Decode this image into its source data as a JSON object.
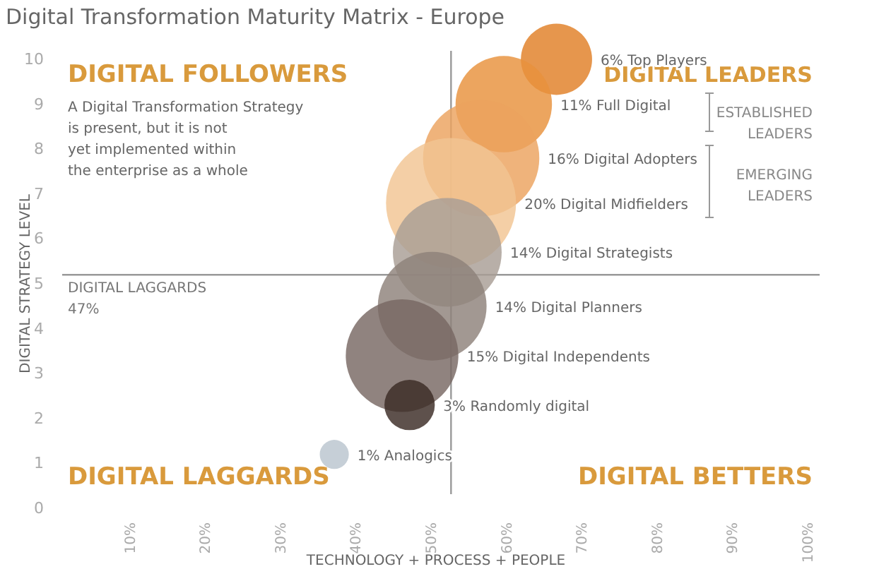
{
  "chart_data": {
    "type": "bubble",
    "title": "Digital Transformation Maturity Matrix - Europe",
    "xlabel": "TECHNOLOGY + PROCESS + PEOPLE",
    "ylabel": "DIGITAL STRATEGY LEVEL",
    "x": [
      66,
      59,
      56,
      52,
      51.5,
      49.5,
      45.5,
      46.5,
      36.5
    ],
    "values": [
      10,
      9,
      7.8,
      6.8,
      5.7,
      4.5,
      3.4,
      2.3,
      1.2
    ],
    "sizes": [
      6,
      11,
      16,
      20,
      14,
      14,
      15,
      3,
      1
    ],
    "colors": [
      "#e07f26",
      "#e8913c",
      "#eba25e",
      "#f1c592",
      "#a89d95",
      "#8d817a",
      "#776863",
      "#3b2b25",
      "#b9c5ce"
    ],
    "xlim": [
      0,
      100
    ],
    "ylim": [
      0,
      10
    ],
    "xticks": [
      {
        "value": 10,
        "label": "10%"
      },
      {
        "value": 20,
        "label": "20%"
      },
      {
        "value": 30,
        "label": "30%"
      },
      {
        "value": 40,
        "label": "40%"
      },
      {
        "value": 50,
        "label": "50%"
      },
      {
        "value": 60,
        "label": "60%"
      },
      {
        "value": 70,
        "label": "70%"
      },
      {
        "value": 80,
        "label": "80%"
      },
      {
        "value": 90,
        "label": "90%"
      },
      {
        "value": 100,
        "label": "100%"
      }
    ],
    "yticks": [
      0,
      1,
      2,
      3,
      4,
      5,
      6,
      7,
      8,
      9,
      10
    ],
    "grid": false,
    "ref_lines": [
      {
        "axis": "x",
        "value": 52,
        "label": null
      },
      {
        "axis": "y",
        "value": 5.2,
        "label": null
      }
    ],
    "annotations": [
      "DIGITAL FOLLOWERS",
      "A Digital Transformation Strategy\nis present, but it is not\nyet implemented within\nthe enterprise as a whole",
      "DIGITAL LEADERS",
      "ESTABLISHED\nLEADERS",
      "EMERGING\nLEADERS",
      "DIGITAL LAGGARDS\n47%",
      "DIGITAL LAGGARDS",
      "DIGITAL BETTERS"
    ],
    "value_labels": [
      "6% Top Players",
      "11% Full Digital",
      "16% Digital Adopters",
      "20% Digital Midfielders",
      "14% Digital Strategists",
      "14% Digital Planners",
      "15% Digital Independents",
      "3% Randomly digital",
      "1% Analogics"
    ]
  }
}
